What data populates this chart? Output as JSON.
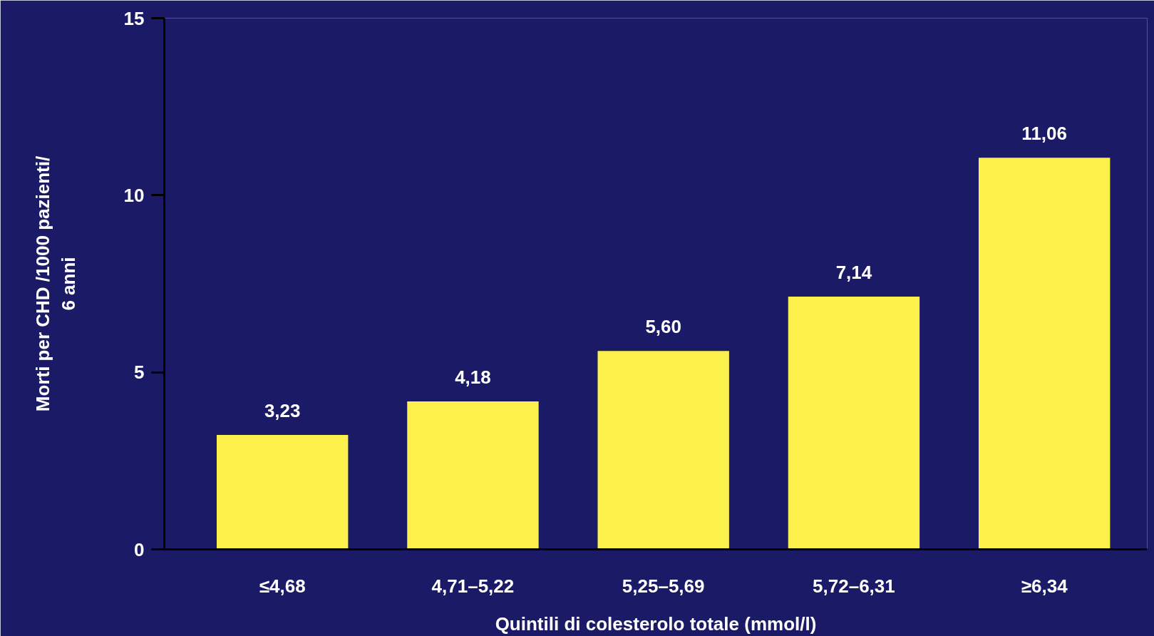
{
  "chart_data": {
    "type": "bar",
    "xlabel": "Quintili di colesterolo totale (mmol/l)",
    "ylabel": "Morti per CHD /1000 pazienti/\n6 anni",
    "categories": [
      "≤4,68",
      "4,71–5,22",
      "5,25–5,69",
      "5,72–6,31",
      "≥6,34"
    ],
    "values": [
      3.23,
      4.18,
      5.6,
      7.14,
      11.06
    ],
    "value_labels": [
      "3,23",
      "4,18",
      "5,60",
      "7,14",
      "11,06"
    ],
    "color": "#fcf04a",
    "ylim": [
      0,
      15
    ],
    "yticks": [
      0,
      5,
      10,
      15
    ],
    "grid": false
  }
}
